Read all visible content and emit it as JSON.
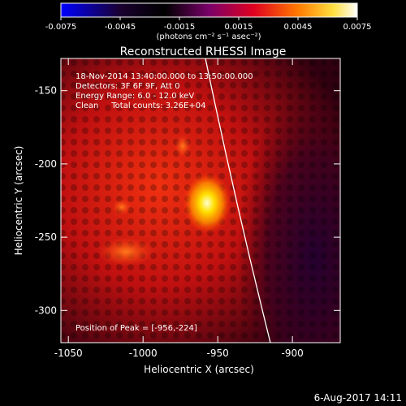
{
  "colorbar": {
    "ticks": [
      "-0.0075",
      "-0.0045",
      "-0.0015",
      "0.0015",
      "0.0045",
      "0.0075"
    ],
    "unit_label": "(photons cm⁻² s⁻¹ asec⁻²)",
    "colors": [
      "#0000ff",
      "#000000",
      "#8b008b",
      "#ff0000",
      "#ffaa00",
      "#ffffff"
    ]
  },
  "title": "Reconstructed RHESSI Image",
  "info": {
    "line1": "18-Nov-2014 13:40:00.000 to 13:50:00.000",
    "line2": "Detectors: 3F 6F 9F, Att 0",
    "line3": "Energy Range: 6.0 - 12.0 keV",
    "line4": "Clean     Total counts: 3.26E+04",
    "peak": "Position of Peak = [-956,-224]"
  },
  "axes": {
    "xlabel": "Heliocentric X (arcsec)",
    "ylabel": "Heliocentric Y (arcsec)",
    "xticks": [
      "-1050",
      "-1000",
      "-950",
      "-900"
    ],
    "yticks": [
      "-150",
      "-200",
      "-250",
      "-300"
    ],
    "xrange": [
      -1055,
      -868
    ],
    "yrange": [
      -322,
      -128
    ]
  },
  "footer_date": "6-Aug-2017 14:11"
}
